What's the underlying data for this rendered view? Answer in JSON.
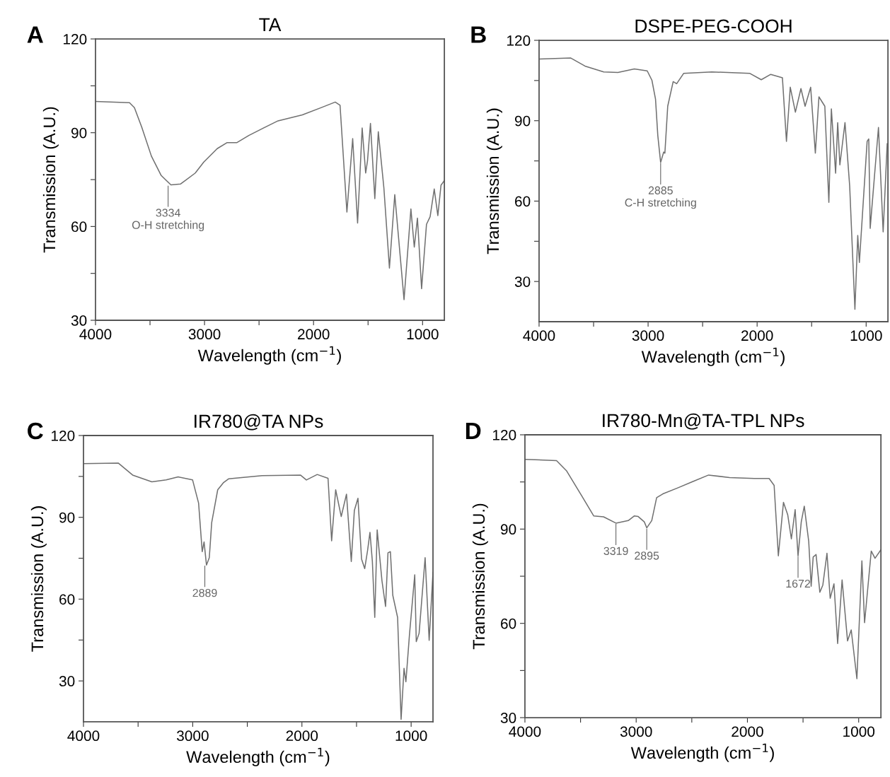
{
  "chart_data": [
    {
      "type": "line",
      "title": "TA",
      "xlabel": "Wavelength (cm$^{−1}$)",
      "ylabel": "Transmission (A.U.)",
      "color": "#707070",
      "legend": false,
      "grid": false,
      "marker": "none",
      "line_style": "solid",
      "xlim": [
        4000,
        800
      ],
      "xticks": [
        4000,
        {
          "value": 3500,
          "label": null
        },
        3000,
        {
          "value": 2500,
          "label": null
        },
        2000,
        {
          "value": 1500,
          "label": null
        },
        1000
      ],
      "ylim": [
        30,
        120
      ],
      "yticks": [
        30,
        {
          "value": 45,
          "label": null
        },
        60,
        {
          "value": 75,
          "label": null
        },
        90,
        {
          "value": 105,
          "label": null
        },
        120
      ],
      "annotations": [
        "A",
        {
          "text": "3334\nO-H stretching",
          "x": 3334,
          "y": 73.3
        }
      ],
      "x": [
        4000,
        3688,
        3643,
        3576,
        3487,
        3397,
        3308,
        3219,
        3085,
        3007,
        2884,
        2795,
        2705,
        2594,
        2460,
        2326,
        2103,
        1924,
        1801,
        1757,
        1694,
        1641,
        1596,
        1554,
        1522,
        1505,
        1478,
        1438,
        1406,
        1355,
        1304,
        1255,
        1170,
        1107,
        1076,
        1047,
        1009,
        964,
        931,
        893,
        860,
        831,
        800
      ],
      "values": [
        100,
        99.6,
        98,
        91.8,
        82.5,
        76.3,
        73.3,
        73.6,
        77.1,
        80.6,
        84.9,
        86.8,
        86.8,
        89.1,
        91.5,
        93.8,
        95.7,
        98.1,
        99.8,
        98.8,
        64.6,
        88.1,
        61.1,
        91.5,
        77.1,
        81,
        93,
        68.9,
        90.3,
        72.4,
        46.7,
        70.2,
        36.6,
        65.6,
        53.4,
        62.7,
        40.1,
        60.7,
        63.1,
        72,
        63.5,
        73.2,
        74.7
      ]
    },
    {
      "type": "line",
      "title": "DSPE-PEG-COOH",
      "xlabel": "Wavelength (cm$^{−1}$)",
      "ylabel": "Transmission (A.U.)",
      "color": "#707070",
      "legend": false,
      "grid": false,
      "marker": "none",
      "line_style": "solid",
      "xlim": [
        4000,
        800
      ],
      "xticks": [
        4000,
        {
          "value": 3500,
          "label": null
        },
        3000,
        {
          "value": 2500,
          "label": null
        },
        2000,
        {
          "value": 1500,
          "label": null
        },
        1000
      ],
      "ylim": [
        15,
        120
      ],
      "yticks": [
        30,
        {
          "value": 45,
          "label": null
        },
        60,
        {
          "value": 75,
          "label": null
        },
        90,
        {
          "value": 105,
          "label": null
        },
        120
      ],
      "annotations": [
        "B",
        {
          "text": "2885\nC-H stretching",
          "x": 2885,
          "y": 74.4
        }
      ],
      "x": [
        4000,
        3709,
        3579,
        3407,
        3277,
        3126,
        3008,
        2965,
        2932,
        2911,
        2885,
        2857,
        2846,
        2820,
        2770,
        2738,
        2673,
        2415,
        2069,
        1962,
        1875,
        1768,
        1731,
        1696,
        1649,
        1598,
        1560,
        1509,
        1466,
        1433,
        1379,
        1342,
        1319,
        1280,
        1261,
        1241,
        1194,
        1151,
        1103,
        1077,
        1062,
        991,
        976,
        963,
        887,
        844,
        807
      ],
      "values": [
        113,
        113.4,
        110.4,
        108.2,
        108,
        109.3,
        108.6,
        105.1,
        98.1,
        84.5,
        74.4,
        78.3,
        77.9,
        95.4,
        104.6,
        103.8,
        107.7,
        108.2,
        107.7,
        105.3,
        107.3,
        106,
        82.3,
        102.5,
        93.2,
        102,
        95.4,
        102.5,
        77.9,
        98.9,
        95.4,
        59.5,
        94.4,
        70.4,
        89.3,
        73.5,
        89.3,
        65.6,
        19.6,
        47.2,
        37.1,
        82.3,
        83.2,
        49.8,
        87.5,
        48.5,
        81.4
      ]
    },
    {
      "type": "line",
      "title": "IR780@TA NPs",
      "xlabel": "Wavelength (cm$^{−1}$)",
      "ylabel": "Transmission (A.U.)",
      "color": "#707070",
      "legend": false,
      "grid": false,
      "marker": "none",
      "line_style": "solid",
      "xlim": [
        4000,
        800
      ],
      "xticks": [
        4000,
        {
          "value": 3500,
          "label": null
        },
        3000,
        {
          "value": 2500,
          "label": null
        },
        2000,
        {
          "value": 1500,
          "label": null
        },
        1000
      ],
      "ylim": [
        15,
        120
      ],
      "yticks": [
        30,
        {
          "value": 45,
          "label": null
        },
        60,
        {
          "value": 75,
          "label": null
        },
        90,
        {
          "value": 105,
          "label": null
        },
        120
      ],
      "annotations": [
        "C",
        {
          "text": "2889",
          "x": 2889,
          "y": 72.5
        }
      ],
      "x": [
        4000,
        3682,
        3550,
        3374,
        3243,
        3133,
        3001,
        2946,
        2913,
        2896,
        2874,
        2848,
        2826,
        2771,
        2716,
        2672,
        2365,
        2014,
        1959,
        1860,
        1761,
        1728,
        1691,
        1640,
        1592,
        1548,
        1520,
        1487,
        1454,
        1425,
        1399,
        1377,
        1355,
        1333,
        1311,
        1267,
        1234,
        1212,
        1190,
        1168,
        1124,
        1092,
        1065,
        1048,
        1015,
        967,
        953,
        927,
        872,
        835,
        800
      ],
      "values": [
        109.7,
        109.9,
        105.5,
        103,
        103.7,
        104.8,
        103.7,
        95.2,
        77.4,
        81,
        72.5,
        75.2,
        88.1,
        100.1,
        102.8,
        104.1,
        105.3,
        105.5,
        103.7,
        105.7,
        104.3,
        81.4,
        100.1,
        90.3,
        98.5,
        73.8,
        92.5,
        97,
        74.7,
        71.2,
        77.8,
        84.5,
        73.8,
        53.3,
        85.4,
        66.7,
        57.3,
        77,
        77.4,
        61.4,
        53.3,
        15.9,
        34.6,
        29.7,
        47.1,
        68.9,
        44.4,
        47.5,
        75.2,
        44.9,
        69.8
      ]
    },
    {
      "type": "line",
      "title": "IR780-Mn@TA-TPL NPs",
      "xlabel": "Wavelength (cm$^{−1}$)",
      "ylabel": "Transmission (A.U.)",
      "color": "#707070",
      "legend": false,
      "grid": false,
      "marker": "none",
      "line_style": "solid",
      "xlim": [
        4000,
        800
      ],
      "xticks": [
        4000,
        {
          "value": 3500,
          "label": null
        },
        3000,
        {
          "value": 2500,
          "label": null
        },
        2000,
        {
          "value": 1500,
          "label": null
        },
        1000
      ],
      "ylim": [
        30,
        120
      ],
      "yticks": [
        30,
        {
          "value": 45,
          "label": null
        },
        60,
        {
          "value": 75,
          "label": null
        },
        90,
        {
          "value": 105,
          "label": null
        },
        120
      ],
      "annotations": [
        "D",
        {
          "text": "3319",
          "x": 3182,
          "y": 91.9
        },
        {
          "text": "2895",
          "x": 2905,
          "y": 90.4
        },
        {
          "text": "1672",
          "x": 1545,
          "y": 81.5
        }
      ],
      "x": [
        4000,
        3716,
        3627,
        3493,
        3382,
        3293,
        3182,
        3071,
        3016,
        2982,
        2927,
        2905,
        2860,
        2816,
        2760,
        2627,
        2493,
        2349,
        2160,
        1938,
        1805,
        1760,
        1722,
        1676,
        1638,
        1605,
        1571,
        1545,
        1516,
        1489,
        1449,
        1427,
        1409,
        1383,
        1349,
        1322,
        1285,
        1256,
        1222,
        1189,
        1149,
        1100,
        1067,
        1016,
        971,
        947,
        887,
        853,
        800
      ],
      "values": [
        112.2,
        111.8,
        108.6,
        100.8,
        94.2,
        93.9,
        91.9,
        92.7,
        94.2,
        94,
        92.3,
        90.4,
        92.7,
        100,
        101.2,
        103.1,
        105.1,
        107.2,
        106.4,
        106.1,
        106.1,
        103.9,
        81.5,
        98.5,
        94.6,
        86.9,
        96.2,
        81.5,
        92.3,
        97.3,
        86.1,
        71.8,
        81.1,
        81.9,
        69.9,
        72.2,
        82.3,
        68,
        72.6,
        53.6,
        73.8,
        54.4,
        57.9,
        42.4,
        79.9,
        60.2,
        83,
        80.7,
        83.4
      ]
    }
  ]
}
